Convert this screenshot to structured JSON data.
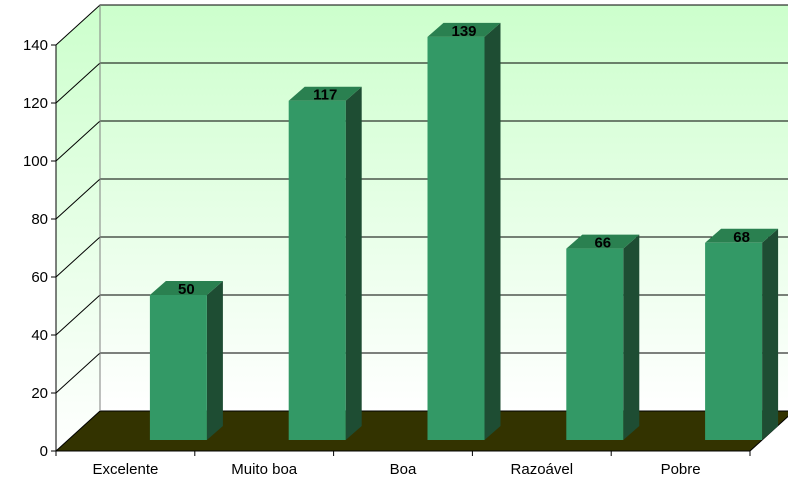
{
  "chart_data": {
    "type": "bar",
    "categories": [
      "Excelente",
      "Muito boa",
      "Boa",
      "Razoável",
      "Pobre"
    ],
    "values": [
      50,
      117,
      139,
      66,
      68
    ],
    "title": "",
    "xlabel": "",
    "ylabel": "",
    "ylim": [
      0,
      140
    ],
    "yticks": [
      0,
      20,
      40,
      60,
      80,
      100,
      120,
      140
    ],
    "grid": true,
    "legend": "none",
    "style": "3d-column",
    "colors": {
      "bar_front": "#339966",
      "bar_top": "#2a8050",
      "bar_side": "#1e4d33",
      "floor": "#333300",
      "wall_top": "#ccffcc",
      "wall_bottom": "#ffffff",
      "gridline": "#000000"
    }
  }
}
